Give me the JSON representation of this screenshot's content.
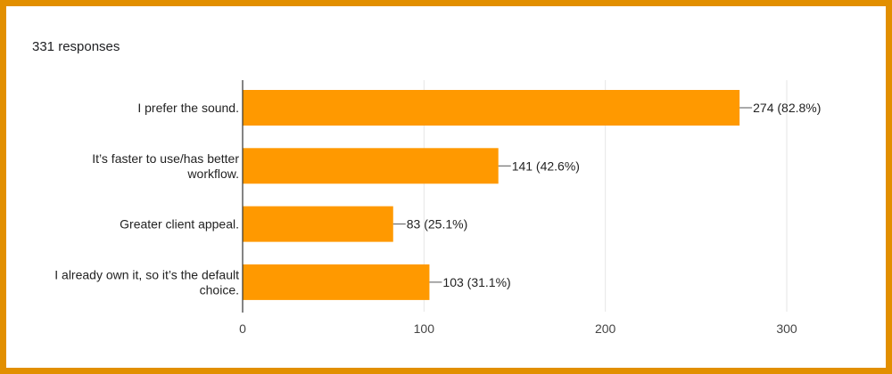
{
  "header": {
    "responses_label": "331 responses"
  },
  "colors": {
    "bar": "#ff9900",
    "frame": "#e28f00",
    "grid": "#e6e6e6",
    "axis": "#333333"
  },
  "chart_data": {
    "type": "bar",
    "orientation": "horizontal",
    "categories": [
      [
        "I prefer the sound."
      ],
      [
        "It’s faster to use/has better",
        "workflow."
      ],
      [
        "Greater client appeal."
      ],
      [
        "I already own it, so it’s the default",
        "choice."
      ]
    ],
    "values": [
      274,
      141,
      83,
      103
    ],
    "data_labels": [
      "274 (82.8%)",
      "141 (42.6%)",
      "83 (25.1%)",
      "103 (31.1%)"
    ],
    "xlim": [
      0,
      300
    ],
    "xticks": [
      0,
      100,
      200,
      300
    ],
    "grid": true,
    "title": "",
    "xlabel": "",
    "ylabel": ""
  }
}
